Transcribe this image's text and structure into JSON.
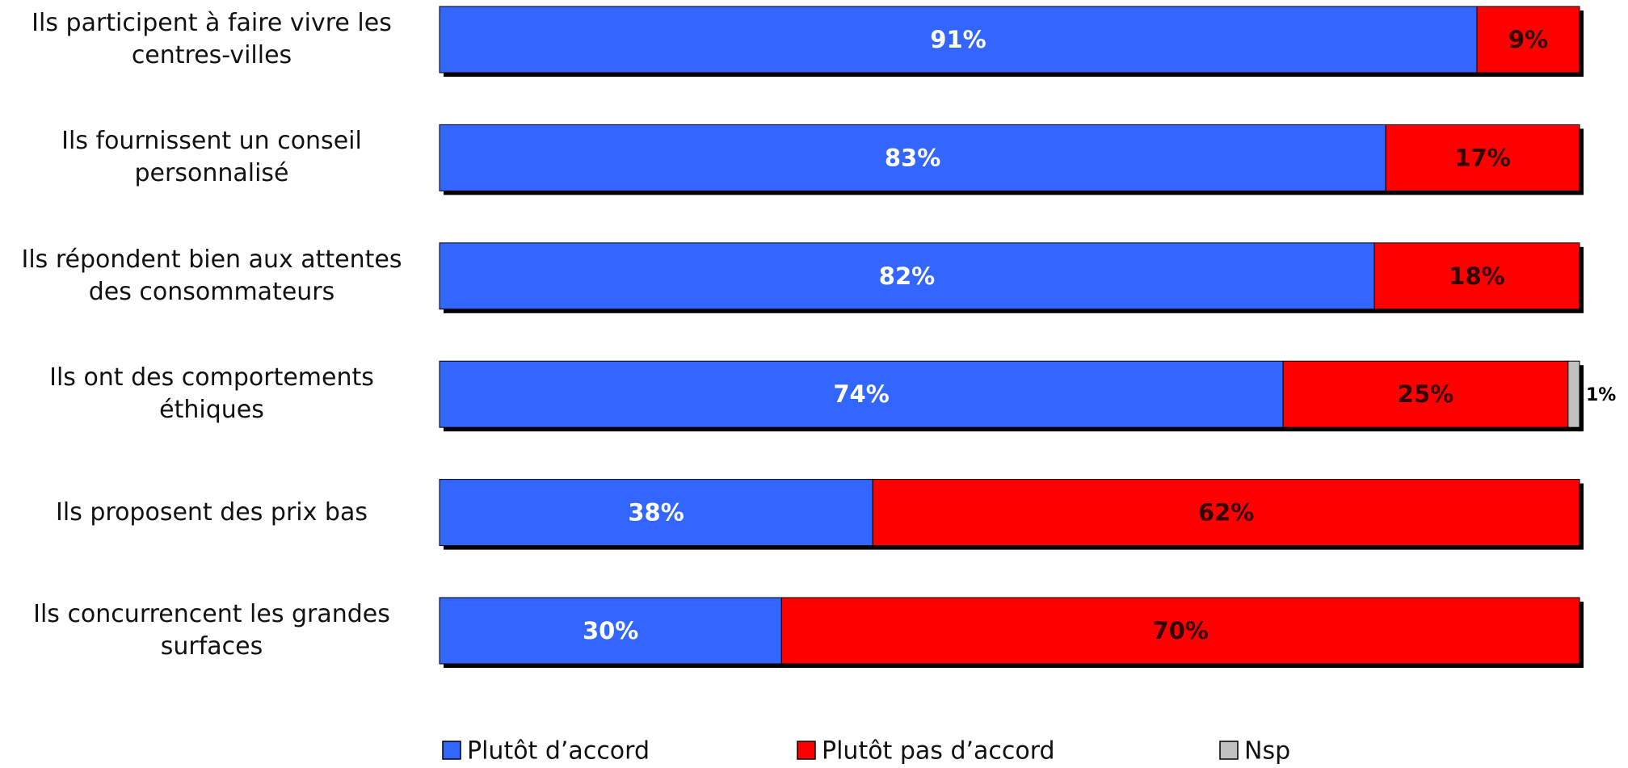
{
  "chart_data": {
    "type": "stacked-bar-horizontal",
    "categories": [
      "Ils participent à faire vivre les centres-villes",
      "Ils fournissent un conseil personnalisé",
      "Ils répondent bien aux attentes des consommateurs",
      "Ils ont des comportements éthiques",
      "Ils proposent des prix bas",
      "Ils concurrencent les grandes surfaces"
    ],
    "series": [
      {
        "name": "Plutôt d’accord",
        "color": "#3366ff",
        "label_color": "#ffffff",
        "values": [
          91,
          83,
          82,
          74,
          38,
          30
        ],
        "value_labels": [
          "91%",
          "83%",
          "82%",
          "74%",
          "38%",
          "30%"
        ]
      },
      {
        "name": "Plutôt pas d’accord",
        "color": "#ff0000",
        "label_color": "#330000",
        "values": [
          9,
          17,
          18,
          25,
          62,
          70
        ],
        "value_labels": [
          "9%",
          "17%",
          "18%",
          "25%",
          "62%",
          "70%"
        ]
      },
      {
        "name": "Nsp",
        "color": "#c0c0c0",
        "label_color": "#000000",
        "values": [
          null,
          null,
          null,
          1,
          null,
          null
        ],
        "value_labels": [
          null,
          null,
          null,
          "1%",
          null,
          null
        ]
      }
    ],
    "xlim": [
      0,
      100
    ],
    "legend": "bottom"
  }
}
